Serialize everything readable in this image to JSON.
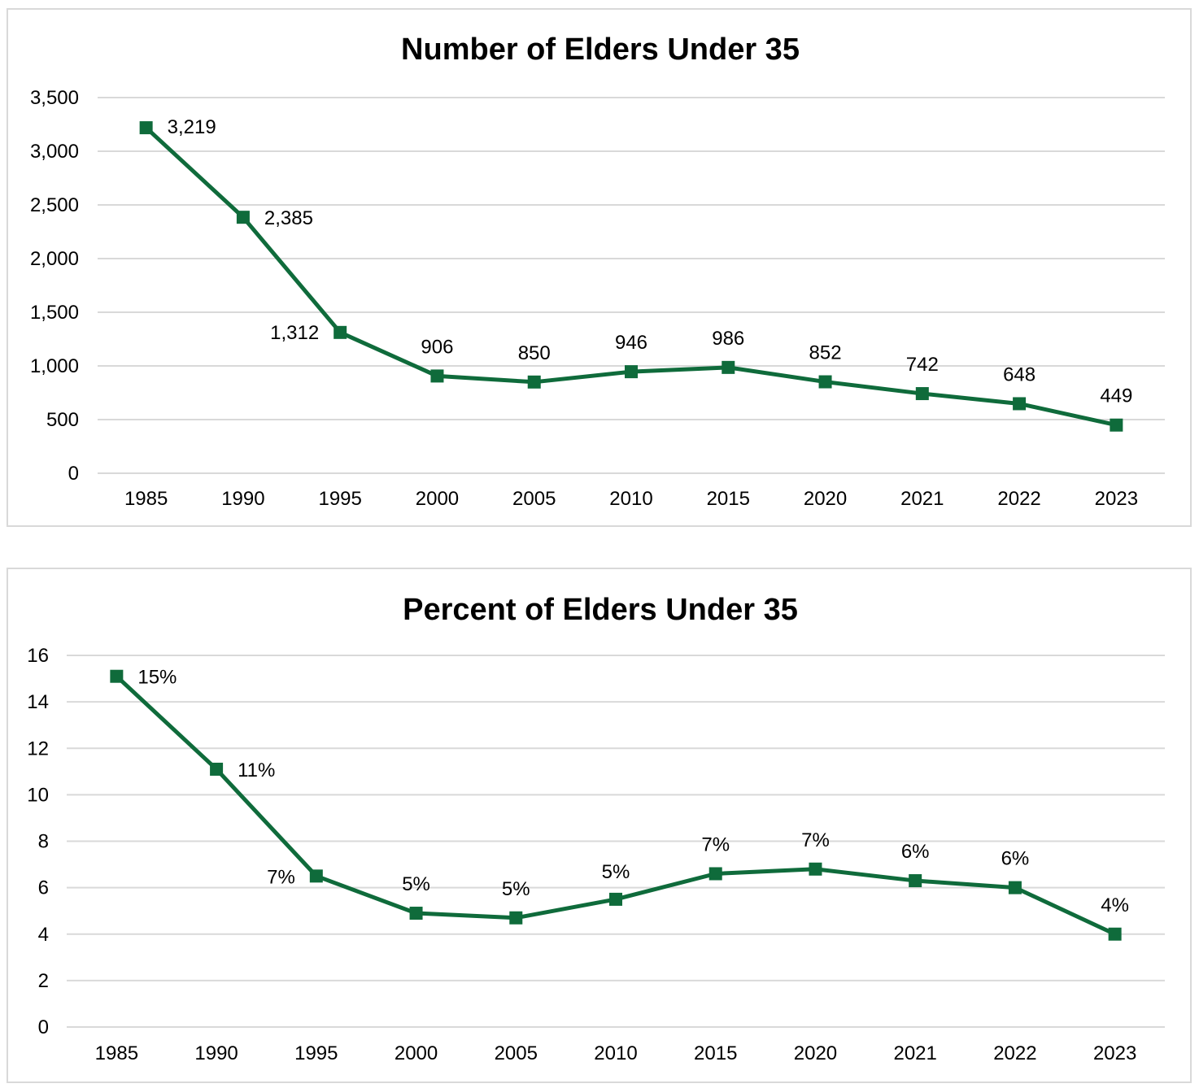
{
  "colors": {
    "series": "#0f6b3b",
    "grid": "#d9d9d9"
  },
  "chart_data": [
    {
      "type": "line",
      "title": "Number of Elders Under 35",
      "xlabel": "",
      "ylabel": "",
      "categories": [
        "1985",
        "1990",
        "1995",
        "2000",
        "2005",
        "2010",
        "2015",
        "2020",
        "2021",
        "2022",
        "2023"
      ],
      "series": [
        {
          "values": [
            3219,
            2385,
            1312,
            906,
            850,
            946,
            986,
            852,
            742,
            648,
            449
          ]
        }
      ],
      "data_labels": [
        "3,219",
        "2,385",
        "1,312",
        "906",
        "850",
        "946",
        "986",
        "852",
        "742",
        "648",
        "449"
      ],
      "ylim": [
        0,
        3500
      ],
      "yticks": [
        0,
        500,
        1000,
        1500,
        2000,
        2500,
        3000,
        3500
      ],
      "ytick_labels": [
        "0",
        "500",
        "1,000",
        "1,500",
        "2,000",
        "2,500",
        "3,000",
        "3,500"
      ],
      "grid": true,
      "legend": "none",
      "marker": "square"
    },
    {
      "type": "line",
      "title": "Percent of Elders Under 35",
      "xlabel": "",
      "ylabel": "",
      "categories": [
        "1985",
        "1990",
        "1995",
        "2000",
        "2005",
        "2010",
        "2015",
        "2020",
        "2021",
        "2022",
        "2023"
      ],
      "series": [
        {
          "values": [
            15.1,
            11.1,
            6.5,
            4.9,
            4.7,
            5.5,
            6.6,
            6.8,
            6.3,
            6.0,
            4.0
          ]
        }
      ],
      "data_labels": [
        "15%",
        "11%",
        "7%",
        "5%",
        "5%",
        "5%",
        "7%",
        "7%",
        "6%",
        "6%",
        "4%"
      ],
      "ylim": [
        0,
        16
      ],
      "yticks": [
        0,
        2,
        4,
        6,
        8,
        10,
        12,
        14,
        16
      ],
      "ytick_labels": [
        "0",
        "2",
        "4",
        "6",
        "8",
        "10",
        "12",
        "14",
        "16"
      ],
      "grid": true,
      "legend": "none",
      "marker": "square"
    }
  ]
}
